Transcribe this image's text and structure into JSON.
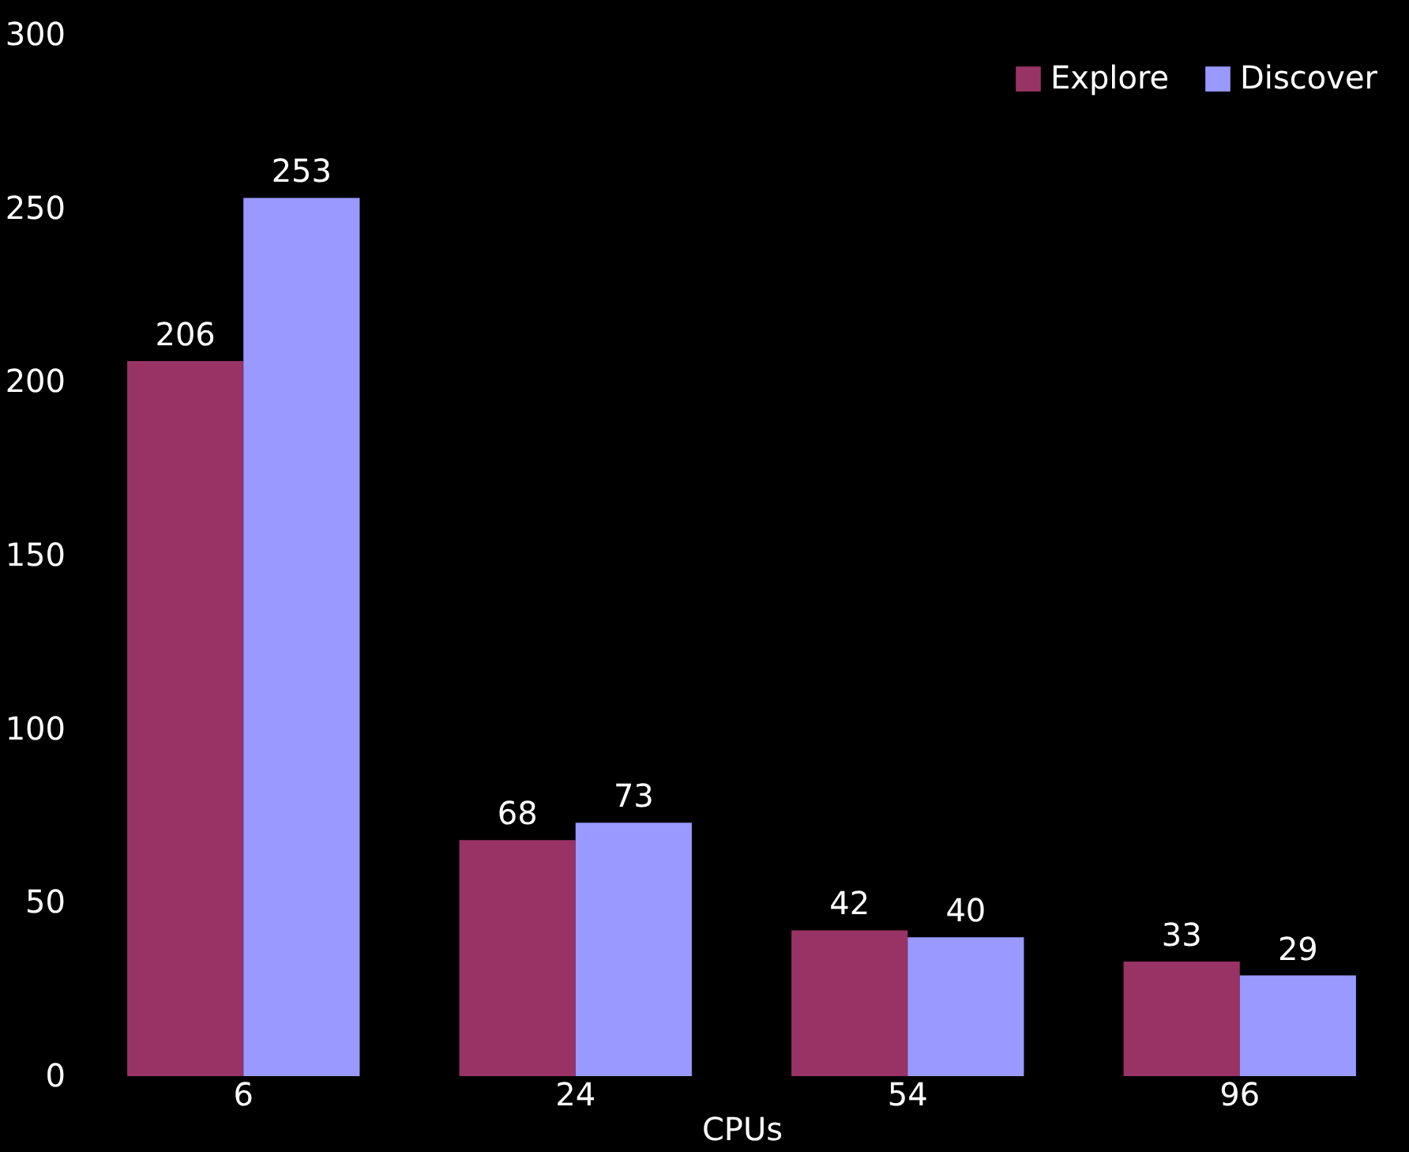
{
  "chart_data": {
    "type": "bar",
    "xlabel": "CPUs",
    "categories": [
      "6",
      "24",
      "54",
      "96"
    ],
    "series": [
      {
        "name": "Explore",
        "color": "#993366",
        "values": [
          206,
          68,
          42,
          33
        ]
      },
      {
        "name": "Discover",
        "color": "#9999ff",
        "values": [
          253,
          73,
          40,
          29
        ]
      }
    ],
    "ylim": [
      0,
      300
    ],
    "yticks": [
      0,
      50,
      100,
      150,
      200,
      250,
      300
    ],
    "data_labels": true,
    "grid": false,
    "legend": "top right"
  }
}
